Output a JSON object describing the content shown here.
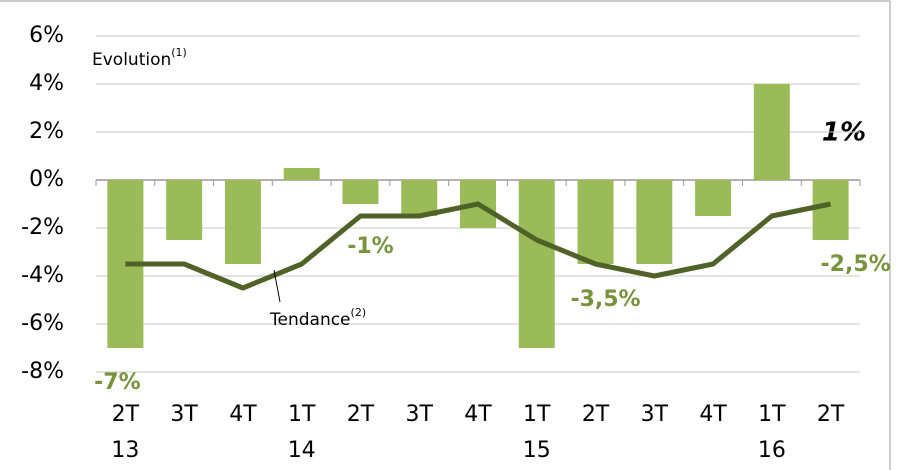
{
  "chart_data": {
    "type": "bar-line",
    "categories": [
      "2T",
      "3T",
      "4T",
      "1T",
      "2T",
      "3T",
      "4T",
      "1T",
      "2T",
      "3T",
      "4T",
      "1T",
      "2T"
    ],
    "years": [
      "13",
      null,
      null,
      "14",
      null,
      null,
      null,
      "15",
      null,
      null,
      null,
      "16",
      null
    ],
    "series": [
      {
        "name": "Evolution",
        "name_note": "(1)",
        "kind": "bar",
        "color": "#9bbb59",
        "values": [
          -7,
          -2.5,
          -3.5,
          0.5,
          -1,
          -1.5,
          -2,
          -7,
          -3.5,
          -3.5,
          -1.5,
          4,
          -2.5
        ],
        "value_labels": [
          "-7%",
          null,
          null,
          null,
          "-1%",
          null,
          null,
          null,
          "-3,5%",
          null,
          null,
          null,
          "-2,5%"
        ]
      },
      {
        "name": "Tendance",
        "name_note": "(2)",
        "kind": "line",
        "color": "#4f6228",
        "values": [
          -3.5,
          -3.5,
          -4.5,
          -3.5,
          -1.5,
          -1.5,
          -1,
          -2.5,
          -3.5,
          -4,
          -3.5,
          -1.5,
          -1
        ]
      }
    ],
    "annotation": "1%",
    "ylim": [
      -8,
      6
    ],
    "yticks": [
      {
        "value": -8,
        "label": "-8%"
      },
      {
        "value": -6,
        "label": "-6%"
      },
      {
        "value": -4,
        "label": "-4%"
      },
      {
        "value": -2,
        "label": "-2%"
      },
      {
        "value": 0,
        "label": "0%"
      },
      {
        "value": 2,
        "label": "2%"
      },
      {
        "value": 4,
        "label": "4%"
      },
      {
        "value": 6,
        "label": "6%"
      }
    ],
    "grid": true
  }
}
